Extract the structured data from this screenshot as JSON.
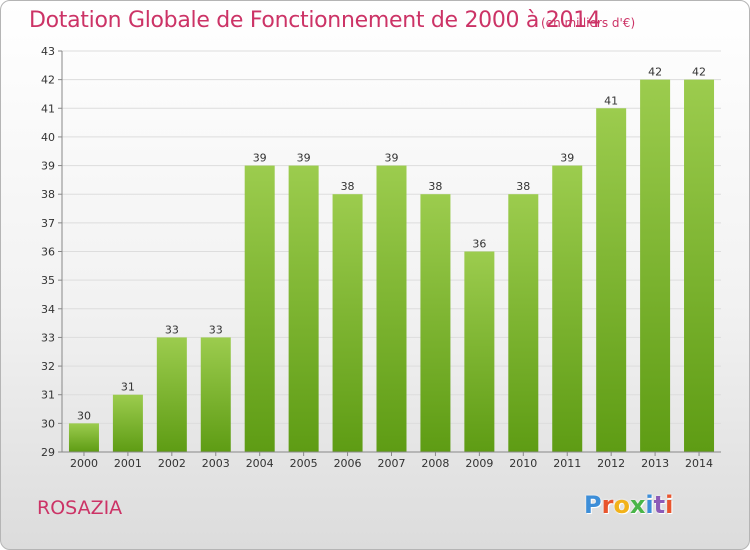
{
  "chart_data": {
    "type": "bar",
    "title": "Dotation Globale de Fonctionnement de 2000 à 2014",
    "subtitle": "(en milliers d'€)",
    "categories": [
      "2000",
      "2001",
      "2002",
      "2003",
      "2004",
      "2005",
      "2006",
      "2007",
      "2008",
      "2009",
      "2010",
      "2011",
      "2012",
      "2013",
      "2014"
    ],
    "values": [
      30,
      31,
      33,
      33,
      39,
      39,
      38,
      39,
      38,
      36,
      38,
      39,
      41,
      42,
      42
    ],
    "value_labels": [
      "30",
      "31",
      "33",
      "33",
      "39",
      "39",
      "38",
      "39",
      "38",
      "36",
      "38",
      "39",
      "41",
      "42",
      "42"
    ],
    "xlabel": "",
    "ylabel": "",
    "ylim": [
      29,
      43
    ],
    "yticks": [
      "29",
      "30",
      "31",
      "32",
      "33",
      "34",
      "35",
      "36",
      "37",
      "38",
      "39",
      "40",
      "41",
      "42",
      "43"
    ],
    "grid": true,
    "bar_color_top": "#9ccc4e",
    "bar_color_bottom": "#5e9c14",
    "legend": "none"
  },
  "footer": {
    "commune": "ROSAZIA",
    "logo_text": "Proxiti",
    "logo_colors": [
      "#3d8ed8",
      "#e8552e",
      "#f2b21a",
      "#49b548",
      "#3d8ed8",
      "#8c5bb8",
      "#e8552e"
    ]
  },
  "colors": {
    "title": "#cc3366",
    "grid": "#dddddd",
    "axis": "#888888"
  }
}
